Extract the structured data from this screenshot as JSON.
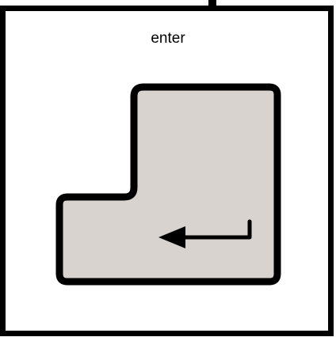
{
  "key": {
    "label": "enter",
    "name": "enter-key",
    "icon": "return-arrow-icon",
    "colors": {
      "outline": "#000000",
      "key_fill": "#d9d3cf",
      "background": "#ffffff"
    }
  }
}
